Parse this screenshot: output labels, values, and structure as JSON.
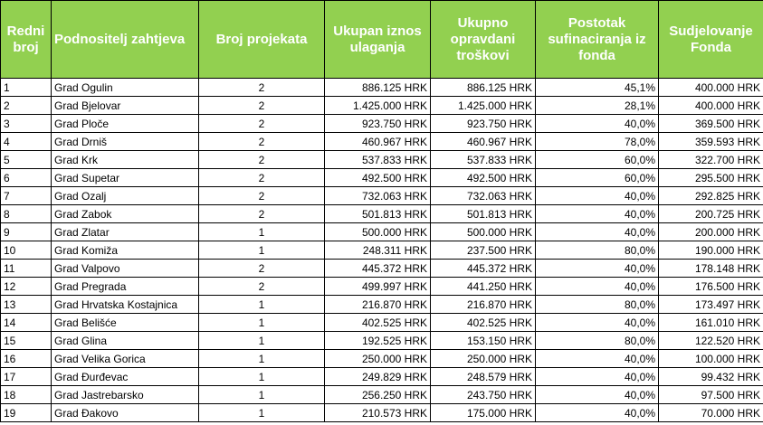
{
  "headers": [
    "Redni broj",
    "Podnositelj zahtjeva",
    "Broj projekata",
    "Ukupan iznos ulaganja",
    "Ukupno opravdani troškovi",
    "Postotak sufinaciranja iz fonda",
    "Sudjelovanje Fonda"
  ],
  "rows": [
    [
      "1",
      "Grad Ogulin",
      "2",
      "886.125 HRK",
      "886.125 HRK",
      "45,1%",
      "400.000 HRK"
    ],
    [
      "2",
      "Grad Bjelovar",
      "2",
      "1.425.000 HRK",
      "1.425.000 HRK",
      "28,1%",
      "400.000 HRK"
    ],
    [
      "3",
      "Grad Ploče",
      "2",
      "923.750 HRK",
      "923.750 HRK",
      "40,0%",
      "369.500 HRK"
    ],
    [
      "4",
      "Grad Drniš",
      "2",
      "460.967 HRK",
      "460.967 HRK",
      "78,0%",
      "359.593 HRK"
    ],
    [
      "5",
      "Grad Krk",
      "2",
      "537.833 HRK",
      "537.833 HRK",
      "60,0%",
      "322.700 HRK"
    ],
    [
      "6",
      "Grad Supetar",
      "2",
      "492.500 HRK",
      "492.500 HRK",
      "60,0%",
      "295.500 HRK"
    ],
    [
      "7",
      "Grad Ozalj",
      "2",
      "732.063 HRK",
      "732.063 HRK",
      "40,0%",
      "292.825 HRK"
    ],
    [
      "8",
      "Grad Zabok",
      "2",
      "501.813 HRK",
      "501.813 HRK",
      "40,0%",
      "200.725 HRK"
    ],
    [
      "9",
      "Grad Zlatar",
      "1",
      "500.000 HRK",
      "500.000 HRK",
      "40,0%",
      "200.000 HRK"
    ],
    [
      "10",
      "Grad Komiža",
      "1",
      "248.311 HRK",
      "237.500 HRK",
      "80,0%",
      "190.000 HRK"
    ],
    [
      "11",
      "Grad Valpovo",
      "2",
      "445.372 HRK",
      "445.372 HRK",
      "40,0%",
      "178.148 HRK"
    ],
    [
      "12",
      "Grad Pregrada",
      "2",
      "499.997 HRK",
      "441.250 HRK",
      "40,0%",
      "176.500 HRK"
    ],
    [
      "13",
      "Grad Hrvatska Kostajnica",
      "1",
      "216.870 HRK",
      "216.870 HRK",
      "80,0%",
      "173.497 HRK"
    ],
    [
      "14",
      "Grad Belišće",
      "1",
      "402.525 HRK",
      "402.525 HRK",
      "40,0%",
      "161.010 HRK"
    ],
    [
      "15",
      "Grad Glina",
      "1",
      "192.525 HRK",
      "153.150 HRK",
      "80,0%",
      "122.520 HRK"
    ],
    [
      "16",
      "Grad Velika Gorica",
      "1",
      "250.000 HRK",
      "250.000 HRK",
      "40,0%",
      "100.000 HRK"
    ],
    [
      "17",
      "Grad Đurđevac",
      "1",
      "249.829 HRK",
      "248.579 HRK",
      "40,0%",
      "99.432 HRK"
    ],
    [
      "18",
      "Grad Jastrebarsko",
      "1",
      "256.250 HRK",
      "243.750 HRK",
      "40,0%",
      "97.500 HRK"
    ],
    [
      "19",
      "Grad Đakovo",
      "1",
      "210.573 HRK",
      "175.000 HRK",
      "40,0%",
      "70.000 HRK"
    ]
  ],
  "colors": {
    "header_background": "#92d050",
    "header_text": "#ffffff",
    "border": "#000000"
  }
}
